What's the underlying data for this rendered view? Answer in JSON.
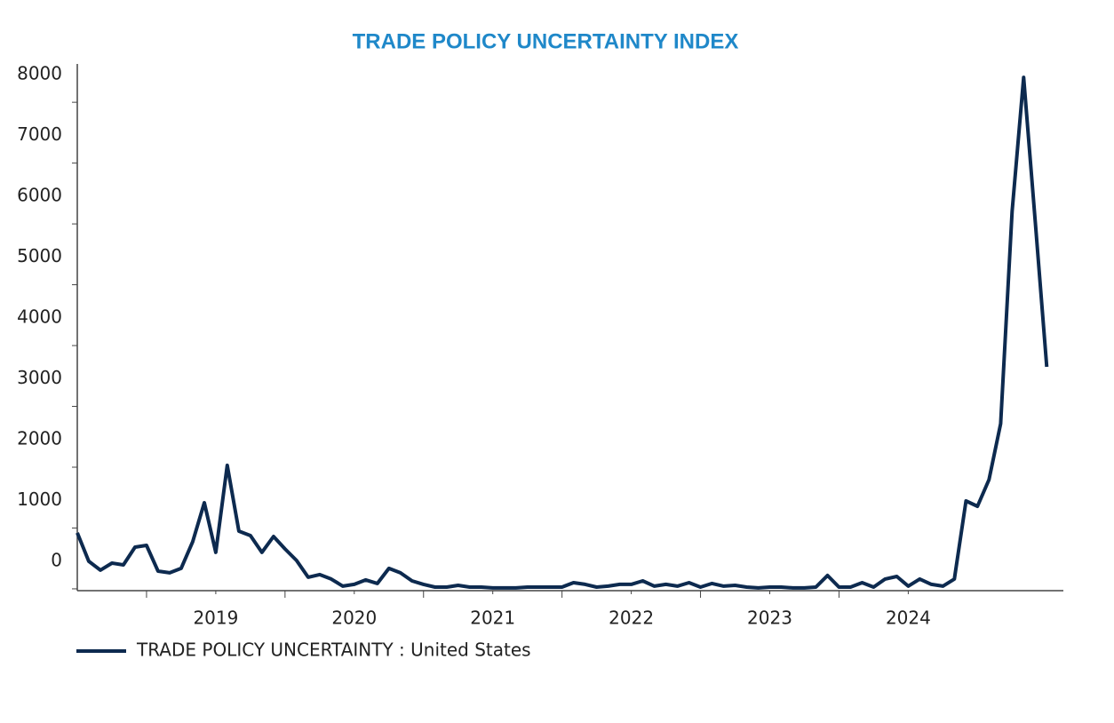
{
  "chart_data": {
    "type": "line",
    "title": "TRADE POLICY UNCERTAINTY INDEX",
    "x": [
      2018.5,
      2018.583,
      2018.667,
      2018.75,
      2018.833,
      2018.917,
      2019,
      2019.083,
      2019.167,
      2019.25,
      2019.333,
      2019.417,
      2019.5,
      2019.583,
      2019.667,
      2019.75,
      2019.833,
      2019.917,
      2020,
      2020.083,
      2020.167,
      2020.25,
      2020.333,
      2020.417,
      2020.5,
      2020.583,
      2020.667,
      2020.75,
      2020.833,
      2020.917,
      2021,
      2021.083,
      2021.167,
      2021.25,
      2021.333,
      2021.417,
      2021.5,
      2021.583,
      2021.667,
      2021.75,
      2021.833,
      2021.917,
      2022,
      2022.083,
      2022.167,
      2022.25,
      2022.333,
      2022.417,
      2022.5,
      2022.583,
      2022.667,
      2022.75,
      2022.833,
      2022.917,
      2023,
      2023.083,
      2023.167,
      2023.25,
      2023.333,
      2023.417,
      2023.5,
      2023.583,
      2023.667,
      2023.75,
      2023.833,
      2023.917,
      2024,
      2024.083,
      2024.167,
      2024.25,
      2024.333,
      2024.417,
      2024.5,
      2024.583,
      2024.667,
      2024.75,
      2024.833,
      2024.917,
      2025,
      2025.083,
      2025.167,
      2025.25,
      2025.333,
      2025.417,
      2025.5
    ],
    "series": [
      {
        "name": "TRADE POLICY UNCERTAINTY : United States",
        "color": "#0d2a4f",
        "values": [
          920,
          453,
          307,
          423,
          394,
          686,
          715,
          292,
          263,
          336,
          774,
          1416,
          599,
          2030,
          949,
          876,
          599,
          861,
          657,
          467,
          190,
          234,
          161,
          44,
          73,
          146,
          88,
          336,
          263,
          131,
          73,
          29,
          29,
          58,
          29,
          29,
          15,
          15,
          15,
          29,
          29,
          29,
          29,
          102,
          73,
          29,
          44,
          73,
          73,
          131,
          44,
          73,
          44,
          102,
          29,
          88,
          44,
          58,
          29,
          15,
          29,
          29,
          15,
          15,
          29,
          219,
          29,
          29,
          102,
          29,
          161,
          204,
          44,
          161,
          73,
          44,
          161,
          1445,
          1358,
          1796,
          2716,
          6205,
          8410,
          6030,
          3650
        ]
      }
    ],
    "xlim": [
      2018.5,
      2025.62
    ],
    "xticks": [
      {
        "value": 2019.5,
        "label": "2019"
      },
      {
        "value": 2020.5,
        "label": "2020"
      },
      {
        "value": 2021.5,
        "label": "2021"
      },
      {
        "value": 2022.5,
        "label": "2022"
      },
      {
        "value": 2023.5,
        "label": "2023"
      },
      {
        "value": 2024.5,
        "label": "2024"
      }
    ],
    "ylim": [
      -30,
      8630
    ],
    "yticks": [
      0,
      1000,
      2000,
      3000,
      4000,
      5000,
      6000,
      7000,
      8000
    ],
    "legend": "bottom-left"
  }
}
